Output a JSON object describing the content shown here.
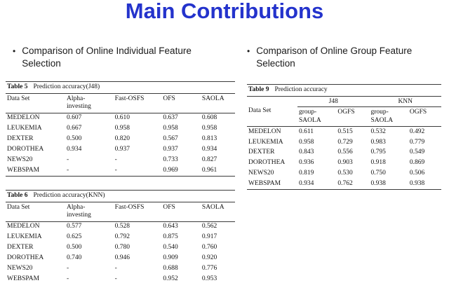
{
  "slide": {
    "title": "Main Contributions",
    "title_color": "#2433cc",
    "bullet_glyph": "•",
    "bullet_left": "Comparison of Online Individual Feature Selection",
    "bullet_right": "Comparison of Online Group Feature Selection"
  },
  "table5": {
    "label": "Table 5",
    "caption": "Prediction accuracy(J48)",
    "headers": [
      "Data Set",
      "Alpha-\ninvesting",
      "Fast-OSFS",
      "OFS",
      "SAOLA"
    ],
    "rows": [
      [
        "MEDELON",
        "0.607",
        "0.610",
        "0.637",
        "0.608"
      ],
      [
        "LEUKEMIA",
        "0.667",
        "0.958",
        "0.958",
        "0.958"
      ],
      [
        "DEXTER",
        "0.500",
        "0.820",
        "0.567",
        "0.813"
      ],
      [
        "DOROTHEA",
        "0.934",
        "0.937",
        "0.937",
        "0.934"
      ],
      [
        "NEWS20",
        "-",
        "-",
        "0.733",
        "0.827"
      ],
      [
        "WEBSPAM",
        "-",
        "-",
        "0.969",
        "0.961"
      ]
    ]
  },
  "table6": {
    "label": "Table 6",
    "caption": "Prediction accuracy(KNN)",
    "headers": [
      "Data Set",
      "Alpha-\ninvesting",
      "Fast-OSFS",
      "OFS",
      "SAOLA"
    ],
    "rows": [
      [
        "MEDELON",
        "0.577",
        "0.528",
        "0.643",
        "0.562"
      ],
      [
        "LEUKEMIA",
        "0.625",
        "0.792",
        "0.875",
        "0.917"
      ],
      [
        "DEXTER",
        "0.500",
        "0.780",
        "0.540",
        "0.760"
      ],
      [
        "DOROTHEA",
        "0.740",
        "0.946",
        "0.909",
        "0.920"
      ],
      [
        "NEWS20",
        "-",
        "-",
        "0.688",
        "0.776"
      ],
      [
        "WEBSPAM",
        "-",
        "-",
        "0.952",
        "0.953"
      ]
    ]
  },
  "table9": {
    "label": "Table 9",
    "caption": "Prediction accuracy",
    "corner": "Data Set",
    "group1": "J48",
    "group2": "KNN",
    "sub": [
      "group-\nSAOLA",
      "OGFS",
      "group-\nSAOLA",
      "OGFS"
    ],
    "rows": [
      [
        "MEDELON",
        "0.611",
        "0.515",
        "0.532",
        "0.492"
      ],
      [
        "LEUKEMIA",
        "0.958",
        "0.729",
        "0.983",
        "0.779"
      ],
      [
        "DEXTER",
        "0.843",
        "0.556",
        "0.795",
        "0.549"
      ],
      [
        "DOROTHEA",
        "0.936",
        "0.903",
        "0.918",
        "0.869"
      ],
      [
        "NEWS20",
        "0.819",
        "0.530",
        "0.750",
        "0.506"
      ],
      [
        "WEBSPAM",
        "0.934",
        "0.762",
        "0.938",
        "0.938"
      ]
    ]
  }
}
